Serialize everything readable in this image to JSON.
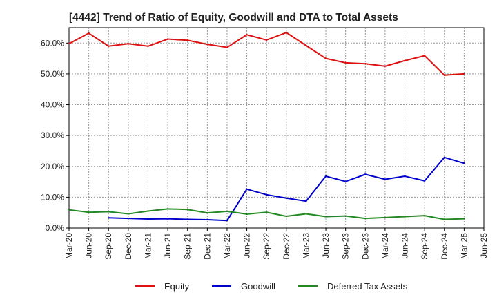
{
  "chart_data": {
    "type": "line",
    "title": "[4442]  Trend of Ratio of Equity, Goodwill and DTA to Total Assets",
    "xlabel": "",
    "ylabel": "",
    "ylim": [
      0,
      65
    ],
    "yticks": [
      0,
      10,
      20,
      30,
      40,
      50,
      60
    ],
    "ytick_labels": [
      "0.0%",
      "10.0%",
      "20.0%",
      "30.0%",
      "40.0%",
      "50.0%",
      "60.0%"
    ],
    "grid": true,
    "legend_position": "bottom-center",
    "categories": [
      "Mar-20",
      "Jun-20",
      "Sep-20",
      "Dec-20",
      "Mar-21",
      "Jun-21",
      "Sep-21",
      "Dec-21",
      "Mar-22",
      "Jun-22",
      "Sep-22",
      "Dec-22",
      "Mar-23",
      "Jun-23",
      "Sep-23",
      "Dec-23",
      "Mar-24",
      "Jun-24",
      "Sep-24",
      "Dec-24",
      "Mar-25",
      "Jun-25"
    ],
    "series": [
      {
        "name": "Equity",
        "color": "#dd1111",
        "values": [
          59.8,
          63.2,
          59.0,
          59.8,
          59.0,
          61.3,
          60.9,
          59.6,
          58.6,
          62.7,
          61.0,
          63.4,
          59.2,
          55.0,
          53.6,
          53.3,
          52.5,
          54.3,
          55.9,
          49.6,
          50.0,
          null
        ]
      },
      {
        "name": "Goodwill",
        "color": "#0000cc",
        "values": [
          null,
          null,
          3.3,
          3.1,
          2.9,
          3.0,
          2.8,
          2.7,
          2.4,
          12.6,
          10.8,
          9.7,
          8.7,
          16.8,
          15.1,
          17.4,
          15.8,
          16.8,
          15.3,
          22.9,
          21.0,
          null
        ]
      },
      {
        "name": "Deferred Tax Assets",
        "color": "#228822",
        "values": [
          5.9,
          5.1,
          5.3,
          4.6,
          5.5,
          6.2,
          6.0,
          4.9,
          5.4,
          4.5,
          5.1,
          3.8,
          4.6,
          3.7,
          3.9,
          3.1,
          3.4,
          3.7,
          4.0,
          2.8,
          3.0,
          null
        ]
      }
    ]
  }
}
